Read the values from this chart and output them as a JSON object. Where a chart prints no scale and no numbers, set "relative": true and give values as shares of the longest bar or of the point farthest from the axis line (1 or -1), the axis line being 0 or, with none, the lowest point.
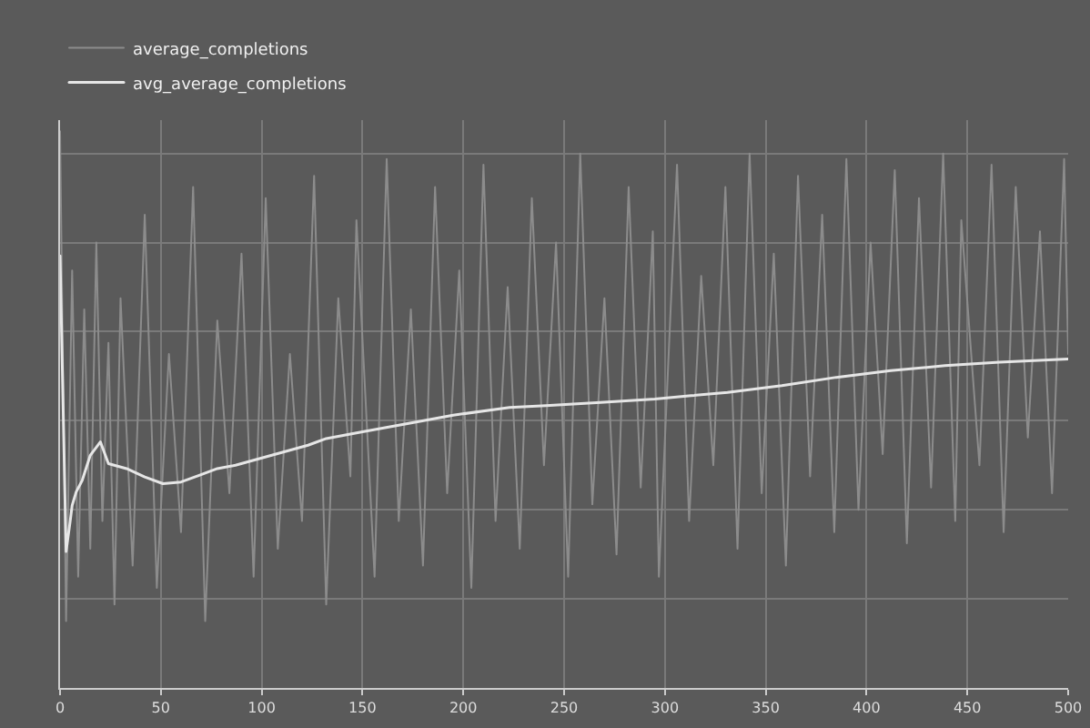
{
  "chart_data": {
    "type": "line",
    "relative": true,
    "xlim": [
      0,
      500
    ],
    "xticks": [
      0,
      50,
      100,
      150,
      200,
      250,
      300,
      350,
      400,
      450,
      500
    ],
    "grid": true,
    "legend": "top left",
    "series": [
      {
        "name": "average_completions",
        "color": "#8c8c8c",
        "x": [
          0,
          3,
          6,
          9,
          12,
          15,
          18,
          21,
          24,
          27,
          30,
          36,
          42,
          48,
          54,
          60,
          66,
          72,
          78,
          84,
          90,
          96,
          102,
          108,
          114,
          120,
          126,
          132,
          138,
          144,
          147,
          156,
          162,
          168,
          174,
          180,
          186,
          192,
          198,
          204,
          210,
          216,
          222,
          228,
          234,
          240,
          246,
          252,
          258,
          264,
          270,
          276,
          282,
          288,
          294,
          297,
          306,
          312,
          318,
          324,
          330,
          336,
          342,
          348,
          354,
          360,
          366,
          372,
          378,
          384,
          390,
          396,
          402,
          408,
          414,
          420,
          426,
          432,
          438,
          444,
          447,
          456,
          462,
          468,
          474,
          480,
          486,
          492,
          498,
          500
        ],
        "values": [
          1,
          0.12,
          0.75,
          0.2,
          0.68,
          0.25,
          0.8,
          0.3,
          0.62,
          0.15,
          0.7,
          0.22,
          0.85,
          0.18,
          0.6,
          0.28,
          0.9,
          0.12,
          0.66,
          0.35,
          0.78,
          0.2,
          0.88,
          0.25,
          0.6,
          0.3,
          0.92,
          0.15,
          0.7,
          0.38,
          0.84,
          0.2,
          0.95,
          0.3,
          0.68,
          0.22,
          0.9,
          0.35,
          0.75,
          0.18,
          0.94,
          0.3,
          0.72,
          0.25,
          0.88,
          0.4,
          0.8,
          0.2,
          0.96,
          0.33,
          0.7,
          0.24,
          0.9,
          0.36,
          0.82,
          0.2,
          0.94,
          0.3,
          0.74,
          0.4,
          0.9,
          0.25,
          0.96,
          0.35,
          0.78,
          0.22,
          0.92,
          0.38,
          0.85,
          0.28,
          0.95,
          0.32,
          0.8,
          0.42,
          0.93,
          0.26,
          0.88,
          0.36,
          0.96,
          0.3,
          0.84,
          0.4,
          0.94,
          0.28,
          0.9,
          0.45,
          0.82,
          0.35,
          0.95,
          0.6
        ]
      },
      {
        "name": "avg_average_completions",
        "color": "#e6e6e6",
        "x": [
          0,
          3,
          5,
          6,
          8,
          11,
          15,
          20,
          24,
          33,
          42,
          51,
          60,
          69,
          78,
          87,
          96,
          105,
          114,
          123,
          132,
          150,
          168,
          195,
          223,
          241,
          268,
          295,
          313,
          331,
          358,
          385,
          412,
          439,
          466,
          500
        ],
        "values": [
          0.776,
          0.245,
          0.299,
          0.328,
          0.352,
          0.373,
          0.418,
          0.442,
          0.403,
          0.394,
          0.379,
          0.367,
          0.37,
          0.382,
          0.394,
          0.4,
          0.409,
          0.418,
          0.427,
          0.436,
          0.448,
          0.46,
          0.472,
          0.49,
          0.504,
          0.507,
          0.513,
          0.519,
          0.525,
          0.531,
          0.543,
          0.558,
          0.57,
          0.579,
          0.585,
          0.591
        ]
      }
    ]
  }
}
